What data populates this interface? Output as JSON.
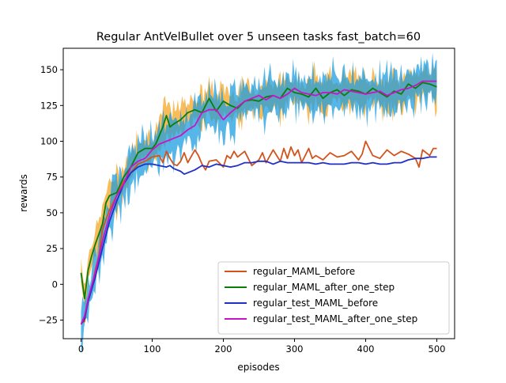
{
  "chart_data": {
    "type": "line",
    "title": "Regular AntVelBullet over 5 unseen tasks fast_batch=60",
    "xlabel": "episodes",
    "ylabel": "rewards",
    "xlim": [
      -25,
      525
    ],
    "ylim": [
      -38,
      165
    ],
    "xticks": [
      0,
      100,
      200,
      300,
      400,
      500
    ],
    "yticks": [
      -25,
      0,
      25,
      50,
      75,
      100,
      125,
      150
    ],
    "grid": false,
    "legend_position": "lower-right",
    "series": [
      {
        "name": "regular_MAML_before",
        "color": "#d2541c",
        "band_color": "#f6a623",
        "x": [
          0,
          5,
          10,
          15,
          20,
          25,
          30,
          40,
          50,
          60,
          70,
          80,
          90,
          100,
          110,
          115,
          120,
          125,
          130,
          135,
          140,
          145,
          150,
          160,
          165,
          170,
          175,
          180,
          190,
          200,
          205,
          210,
          215,
          220,
          230,
          240,
          250,
          255,
          260,
          270,
          280,
          285,
          290,
          295,
          300,
          305,
          310,
          320,
          325,
          330,
          340,
          350,
          360,
          370,
          380,
          390,
          395,
          400,
          405,
          410,
          420,
          430,
          440,
          450,
          460,
          470,
          475,
          480,
          490,
          495,
          500
        ],
        "values": [
          -27,
          -26,
          -10,
          -2,
          10,
          20,
          38,
          52,
          62,
          72,
          78,
          84,
          86,
          89,
          90,
          85,
          93,
          88,
          84,
          83,
          86,
          92,
          85,
          94,
          90,
          84,
          80,
          86,
          87,
          82,
          90,
          88,
          93,
          89,
          93,
          83,
          87,
          92,
          85,
          94,
          86,
          95,
          88,
          96,
          90,
          94,
          85,
          95,
          88,
          90,
          87,
          92,
          89,
          90,
          93,
          87,
          91,
          100,
          95,
          90,
          88,
          94,
          90,
          93,
          91,
          88,
          82,
          94,
          90,
          95,
          95
        ]
      },
      {
        "name": "regular_MAML_after_one_step",
        "color": "#0a7d0a",
        "band_color": "#f6a623",
        "x": [
          0,
          5,
          10,
          15,
          20,
          25,
          30,
          35,
          40,
          50,
          60,
          70,
          80,
          90,
          100,
          105,
          110,
          115,
          120,
          125,
          130,
          140,
          150,
          160,
          170,
          180,
          190,
          200,
          210,
          220,
          230,
          240,
          250,
          260,
          270,
          280,
          290,
          300,
          310,
          320,
          330,
          340,
          350,
          360,
          370,
          380,
          390,
          400,
          410,
          420,
          430,
          440,
          450,
          460,
          470,
          480,
          490,
          500
        ],
        "values": [
          8,
          -10,
          10,
          20,
          28,
          35,
          42,
          57,
          62,
          64,
          75,
          82,
          92,
          95,
          95,
          98,
          104,
          110,
          118,
          110,
          112,
          115,
          120,
          122,
          120,
          130,
          121,
          128,
          125,
          123,
          128,
          129,
          128,
          131,
          132,
          130,
          137,
          134,
          133,
          131,
          137,
          130,
          134,
          136,
          132,
          136,
          135,
          133,
          137,
          134,
          131,
          135,
          133,
          140,
          137,
          141,
          140,
          138
        ]
      },
      {
        "name": "regular_test_MAML_before",
        "color": "#1f2fc7",
        "band_color": "#1f9de0",
        "x": [
          0,
          5,
          10,
          20,
          30,
          40,
          50,
          60,
          70,
          80,
          90,
          100,
          110,
          120,
          125,
          130,
          140,
          145,
          150,
          160,
          170,
          180,
          190,
          200,
          210,
          220,
          230,
          240,
          250,
          260,
          270,
          280,
          290,
          300,
          310,
          320,
          330,
          340,
          350,
          360,
          370,
          380,
          390,
          400,
          410,
          420,
          430,
          440,
          450,
          460,
          470,
          480,
          490,
          500
        ],
        "values": [
          -28,
          -24,
          -12,
          5,
          25,
          44,
          58,
          70,
          78,
          82,
          84,
          84,
          83,
          82,
          83,
          81,
          79,
          77,
          78,
          80,
          83,
          82,
          84,
          83,
          82,
          83,
          85,
          85,
          86,
          86,
          84,
          86,
          85,
          85,
          85,
          85,
          84,
          85,
          84,
          84,
          84,
          85,
          85,
          84,
          85,
          84,
          84,
          85,
          85,
          87,
          88,
          88,
          89,
          89
        ]
      },
      {
        "name": "regular_test_MAML_after_one_step",
        "color": "#c814c8",
        "band_color": "#1f9de0",
        "x": [
          0,
          5,
          10,
          20,
          30,
          40,
          50,
          60,
          70,
          80,
          90,
          100,
          110,
          120,
          130,
          140,
          150,
          160,
          170,
          180,
          190,
          200,
          210,
          220,
          230,
          240,
          250,
          260,
          270,
          280,
          290,
          300,
          310,
          320,
          330,
          340,
          350,
          360,
          370,
          380,
          390,
          400,
          410,
          420,
          430,
          440,
          450,
          460,
          470,
          480,
          490,
          500
        ],
        "values": [
          -28,
          -22,
          -10,
          8,
          30,
          48,
          62,
          70,
          82,
          86,
          88,
          94,
          98,
          100,
          102,
          104,
          108,
          111,
          120,
          122,
          122,
          115,
          120,
          124,
          128,
          130,
          132,
          129,
          132,
          130,
          133,
          137,
          134,
          133,
          132,
          134,
          134,
          133,
          136,
          135,
          134,
          133,
          134,
          135,
          132,
          134,
          136,
          137,
          139,
          142,
          142,
          142
        ]
      }
    ]
  }
}
